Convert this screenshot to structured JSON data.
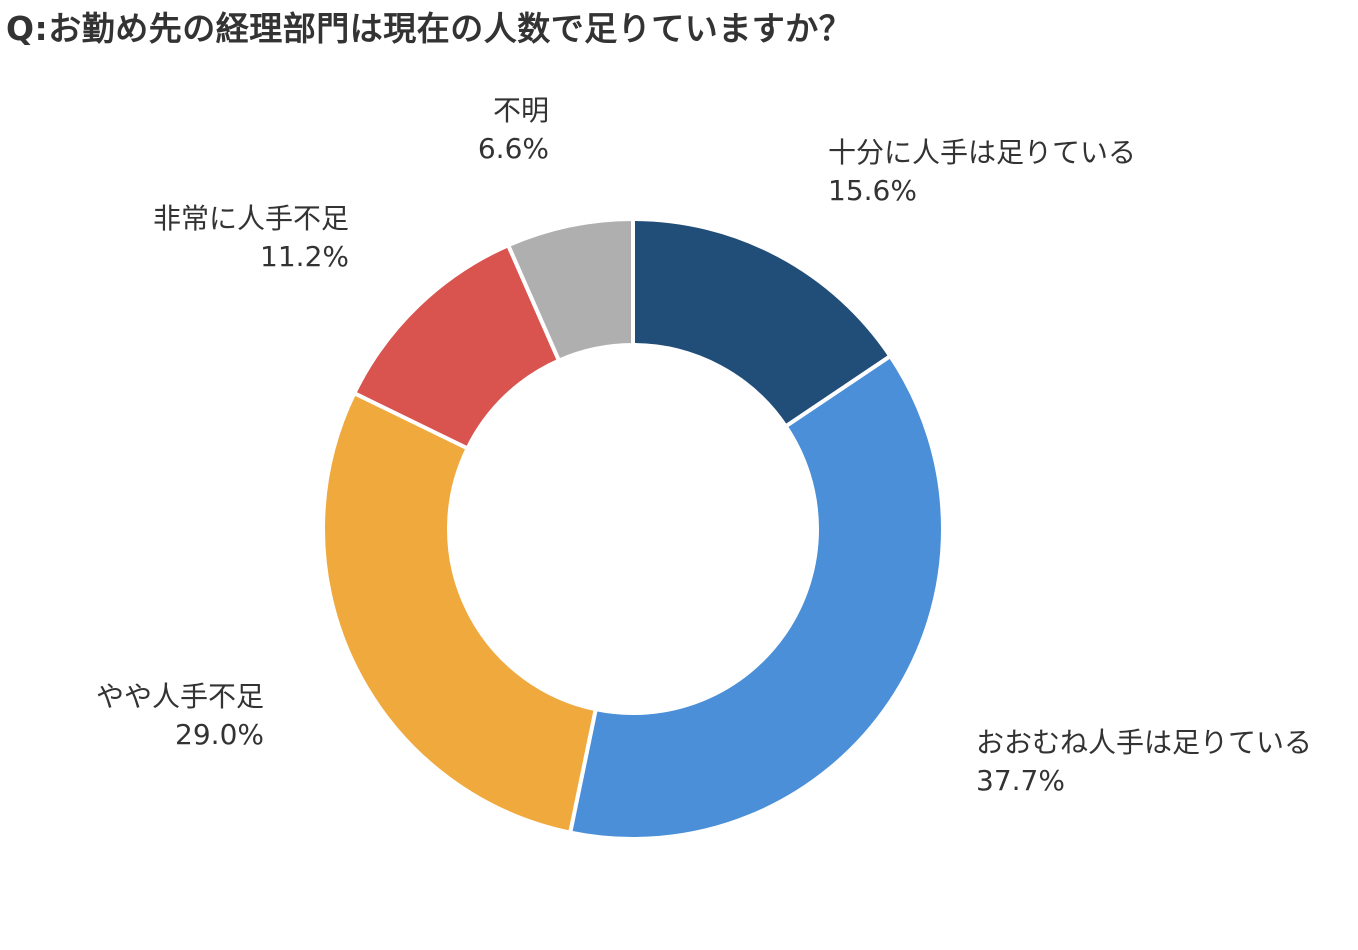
{
  "title": "Q:お勤め先の経理部門は現在の人数で足りていますか？",
  "chart_data": {
    "type": "pie",
    "donut": true,
    "start_angle_deg": 0,
    "direction": "clockwise",
    "categories": [
      "十分に人手は足りている",
      "おおむね人手は足りている",
      "やや人手不足",
      "非常に人手不足",
      "不明"
    ],
    "values": [
      15.6,
      37.7,
      29.0,
      11.2,
      6.6
    ],
    "value_labels": [
      "15.6%",
      "37.7%",
      "29.0%",
      "11.2%",
      "6.6%"
    ],
    "colors": [
      "#214e79",
      "#4a8fd8",
      "#f0a93c",
      "#d9534f",
      "#afafaf"
    ],
    "unit": "%"
  }
}
